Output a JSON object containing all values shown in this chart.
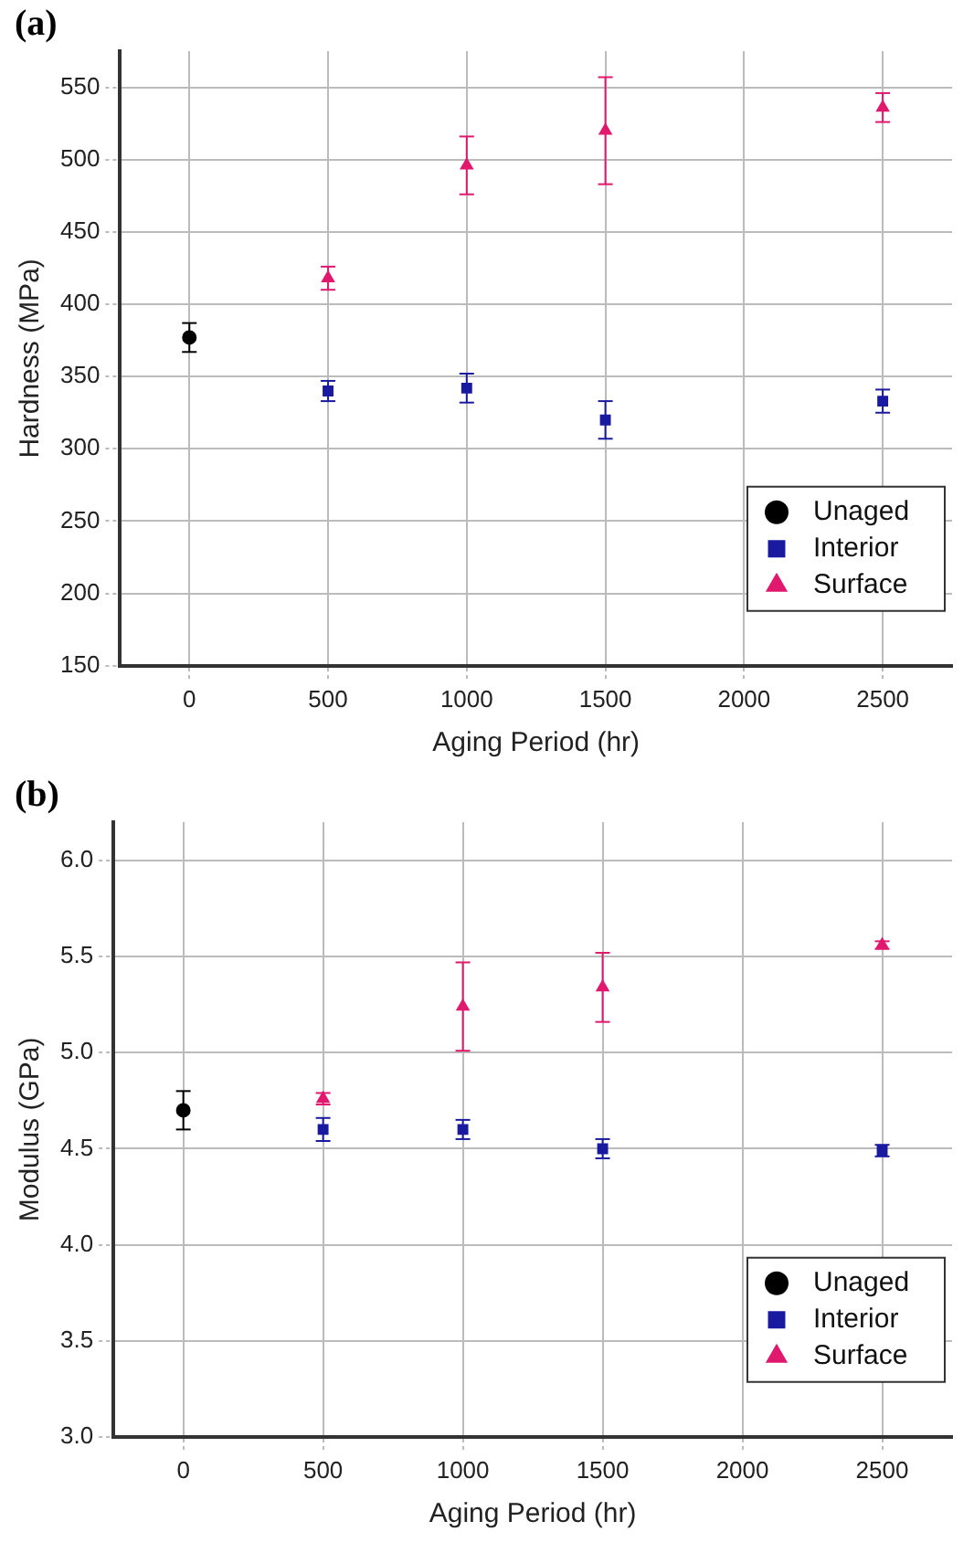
{
  "chart_data": [
    {
      "type": "scatter",
      "title": "(a)",
      "xlabel": "Aging Period (hr)",
      "ylabel": "Hardness (MPa)",
      "xlim": [
        -250,
        2750
      ],
      "xticks": [
        0,
        500,
        1000,
        1500,
        2000,
        2500
      ],
      "ylim": [
        150,
        575
      ],
      "yticks": [
        150,
        200,
        250,
        300,
        350,
        400,
        450,
        500,
        550
      ],
      "grid": true,
      "legend": "bottom right",
      "series": [
        {
          "name": "Unaged",
          "color": "#000000",
          "marker": "circle",
          "x": [
            0
          ],
          "values": [
            377
          ],
          "errors": [
            10
          ]
        },
        {
          "name": "Interior",
          "color": "#1a1aa0",
          "marker": "square",
          "x": [
            500,
            1000,
            1500,
            2500
          ],
          "values": [
            340,
            342,
            320,
            333
          ],
          "errors": [
            7,
            10,
            13,
            8
          ]
        },
        {
          "name": "Surface",
          "color": "#e0186e",
          "marker": "triangle",
          "x": [
            500,
            1000,
            1500,
            2500
          ],
          "values": [
            418,
            496,
            520,
            536
          ],
          "errors": [
            8,
            20,
            37,
            10
          ]
        }
      ]
    },
    {
      "type": "scatter",
      "title": "(b)",
      "xlabel": "Aging Period (hr)",
      "ylabel": "Modulus (GPa)",
      "xlim": [
        -250,
        2750
      ],
      "xticks": [
        0,
        500,
        1000,
        1500,
        2000,
        2500
      ],
      "ylim": [
        3.0,
        6.2
      ],
      "yticks": [
        {
          "value": 3.0,
          "label": "3.0"
        },
        3.5,
        {
          "value": 4.0,
          "label": "4.0"
        },
        4.5,
        {
          "value": 5.0,
          "label": "5.0"
        },
        5.5,
        {
          "value": 6.0,
          "label": "6.0"
        }
      ],
      "grid": true,
      "legend": "bottom right",
      "series": [
        {
          "name": "Unaged",
          "color": "#000000",
          "marker": "circle",
          "x": [
            0
          ],
          "values": [
            4.7
          ],
          "errors": [
            0.1
          ]
        },
        {
          "name": "Interior",
          "color": "#1a1aa0",
          "marker": "square",
          "x": [
            500,
            1000,
            1500,
            2500
          ],
          "values": [
            4.6,
            4.6,
            4.5,
            4.49
          ],
          "errors": [
            0.06,
            0.05,
            0.05,
            0.03
          ]
        },
        {
          "name": "Surface",
          "color": "#e0186e",
          "marker": "triangle",
          "x": [
            500,
            1000,
            1500,
            2500
          ],
          "values": [
            4.76,
            5.24,
            5.34,
            5.56
          ],
          "errors": [
            0.03,
            0.23,
            0.18,
            0.02
          ]
        }
      ]
    }
  ]
}
